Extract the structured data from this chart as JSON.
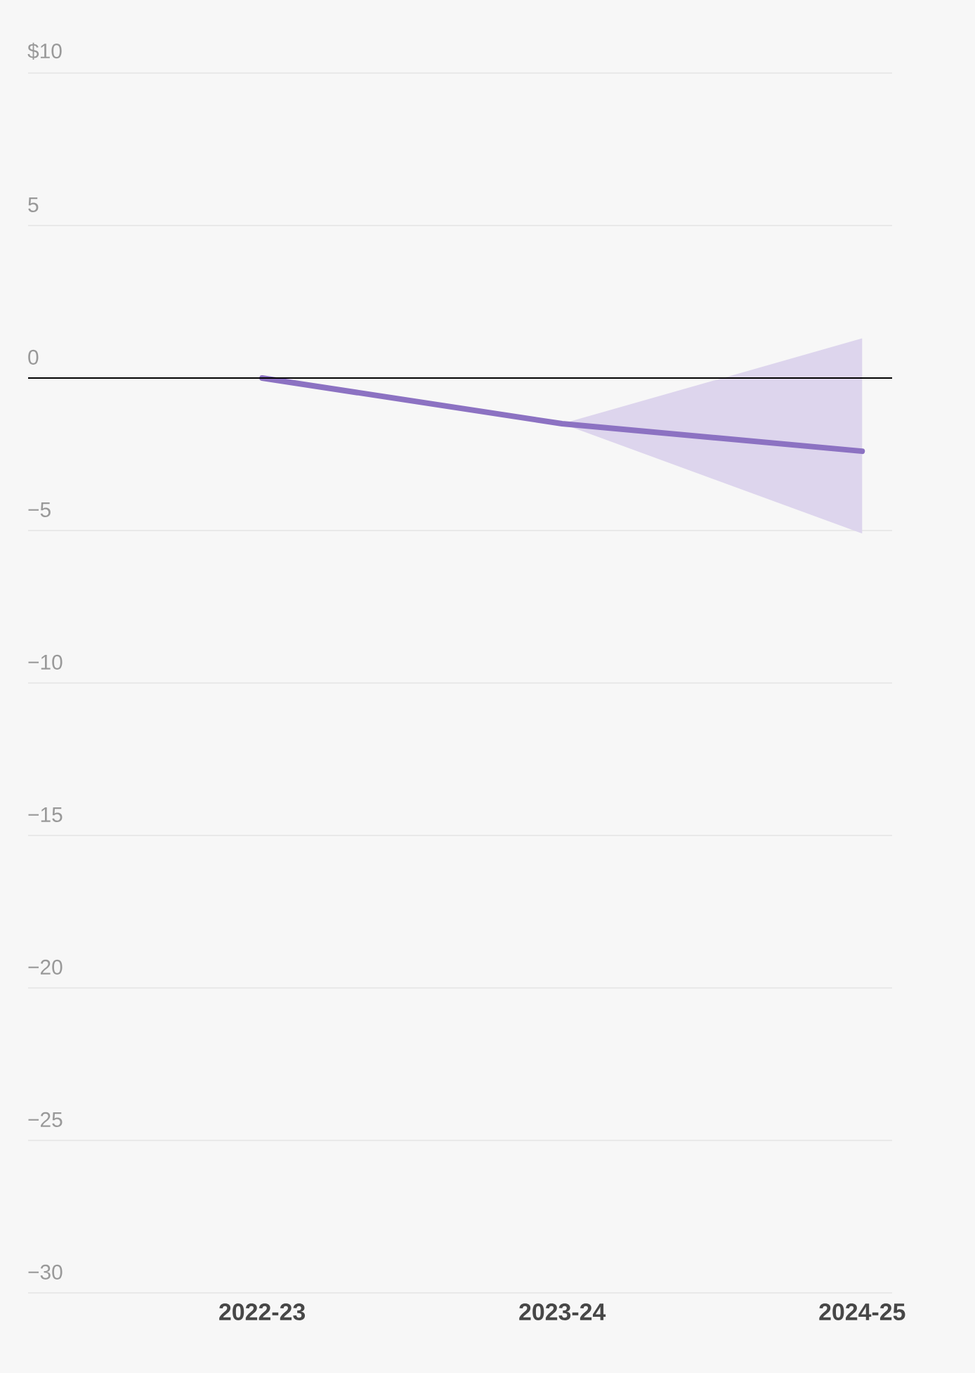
{
  "chart_data": {
    "type": "line",
    "categories": [
      "2022-23",
      "2023-24",
      "2024-25"
    ],
    "series": [
      {
        "color": "#8c72c2",
        "values": [
          0,
          -1.5,
          -2.4
        ],
        "lower": [
          null,
          -1.5,
          -5.1
        ],
        "upper": [
          null,
          -1.5,
          1.3
        ]
      }
    ],
    "ylim": [
      -30,
      10
    ],
    "yticks": [
      {
        "value": 10,
        "label": "$10"
      },
      5,
      {
        "value": 0,
        "label": "0"
      },
      {
        "value": -5,
        "label": "−5"
      },
      {
        "value": -10,
        "label": "−10"
      },
      {
        "value": -15,
        "label": "−15"
      },
      {
        "value": -20,
        "label": "−20"
      },
      {
        "value": -25,
        "label": "−25"
      },
      {
        "value": -30,
        "label": "−30"
      }
    ],
    "grid": "y",
    "marker": "none",
    "line_style": "solid",
    "ref_lines": [
      {
        "axis": "y",
        "value": 0,
        "color": "#000000"
      }
    ]
  }
}
